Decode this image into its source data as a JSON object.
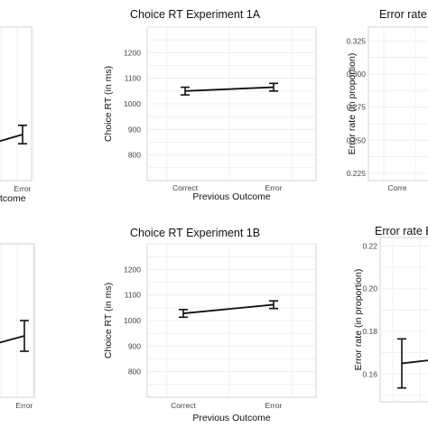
{
  "chart_data": [
    {
      "panel": "top-left",
      "type": "line",
      "title": "",
      "xlabel": "tcome",
      "ylabel": "",
      "categories": [
        "Correct",
        "Error"
      ],
      "tick_labels_x": [
        "",
        "Error"
      ],
      "y_ticks": [],
      "series": [
        {
          "points": [
            {
              "x": "Error",
              "y": 0.3,
              "err": 0.06
            }
          ]
        }
      ]
    },
    {
      "panel": "top-middle",
      "type": "line",
      "title": "Choice RT Experiment 1A",
      "xlabel": "Previous Outcome",
      "ylabel": "Choice RT (in ms)",
      "categories": [
        "Correct",
        "Error"
      ],
      "tick_labels_x": [
        "Correct",
        "Error"
      ],
      "ylim": [
        700,
        1300
      ],
      "y_ticks": [
        800,
        900,
        1000,
        1100,
        1200
      ],
      "grid": true,
      "series": [
        {
          "values": [
            1050,
            1065
          ],
          "err": [
            15,
            15
          ]
        }
      ]
    },
    {
      "panel": "top-right",
      "type": "line",
      "title": "Error rate E",
      "xlabel": "",
      "ylabel": "Error rate (in proportion)",
      "categories": [
        "Correct",
        "Error"
      ],
      "tick_labels_x": [
        "Corre"
      ],
      "ylim": [
        0.2195,
        0.3355
      ],
      "y_ticks": [
        0.225,
        0.25,
        0.275,
        0.3,
        0.325
      ],
      "y_tick_labels": [
        "0.225",
        "0.250",
        "0.275",
        "0.300",
        "0.325"
      ],
      "grid": true,
      "series": []
    },
    {
      "panel": "bottom-left",
      "type": "line",
      "title": "",
      "xlabel": "",
      "ylabel": "",
      "categories": [
        "Correct",
        "Error"
      ],
      "tick_labels_x": [
        "",
        "Error"
      ],
      "y_ticks": [],
      "series": [
        {
          "points": [
            {
              "x": "Error",
              "y": 0.4,
              "err": 0.1
            }
          ]
        }
      ]
    },
    {
      "panel": "bottom-middle",
      "type": "line",
      "title": "Choice RT Experiment 1B",
      "xlabel": "Previous Outcome",
      "ylabel": "Choice RT (in ms)",
      "categories": [
        "Correct",
        "Error"
      ],
      "tick_labels_x": [
        "Correct",
        "Error"
      ],
      "ylim": [
        700,
        1300
      ],
      "y_ticks": [
        800,
        900,
        1000,
        1100,
        1200
      ],
      "grid": true,
      "series": [
        {
          "values": [
            1028,
            1062
          ],
          "err": [
            15,
            15
          ]
        }
      ]
    },
    {
      "panel": "bottom-right",
      "type": "line",
      "title": "Error rate E",
      "xlabel": "",
      "ylabel": "Error rate (in proportion)",
      "categories": [
        "Correct",
        "Error"
      ],
      "tick_labels_x": [],
      "ylim": [
        0.147,
        0.224
      ],
      "y_ticks": [
        0.16,
        0.18,
        0.2,
        0.22
      ],
      "y_tick_labels": [
        "0.16",
        "0.18",
        "0.20",
        "0.22"
      ],
      "grid": true,
      "series": [
        {
          "points": [
            {
              "x": "Correct",
              "y": 0.165,
              "err": 0.0115
            }
          ]
        }
      ]
    }
  ]
}
